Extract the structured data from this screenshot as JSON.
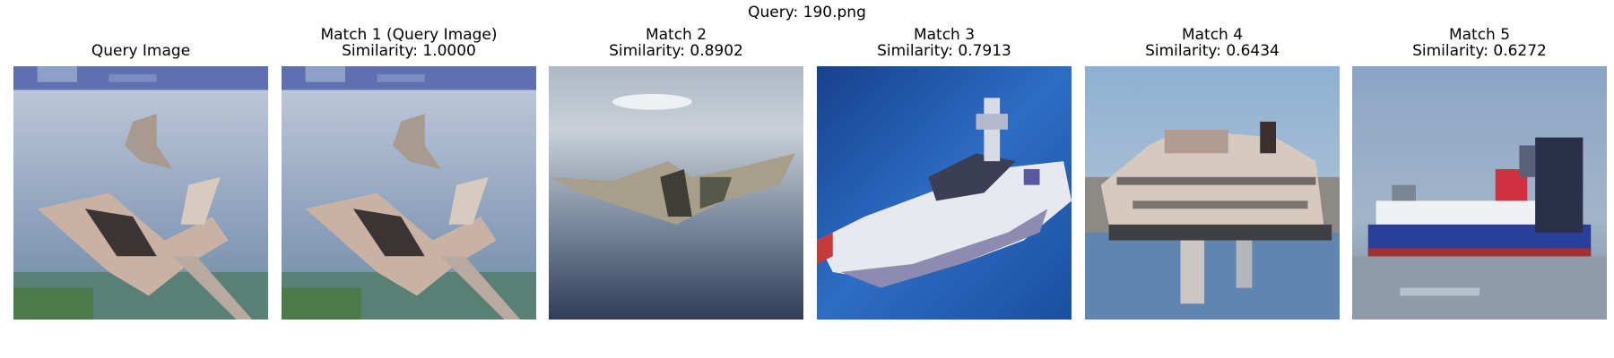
{
  "figure": {
    "title": "Query: 190.png"
  },
  "panels": [
    {
      "title_line1": "Query Image",
      "title_line2": "",
      "image": "fighter-jets"
    },
    {
      "title_line1": "Match 1 (Query Image)",
      "title_line2": "Similarity: 1.0000",
      "image": "fighter-jets"
    },
    {
      "title_line1": "Match 2",
      "title_line2": "Similarity: 0.8902",
      "image": "stealth-bomber"
    },
    {
      "title_line1": "Match 3",
      "title_line2": "Similarity: 0.7913",
      "image": "speedboat"
    },
    {
      "title_line1": "Match 4",
      "title_line2": "Similarity: 0.6434",
      "image": "ferry"
    },
    {
      "title_line1": "Match 5",
      "title_line2": "Similarity: 0.6272",
      "image": "blue-cargo-ship"
    }
  ]
}
